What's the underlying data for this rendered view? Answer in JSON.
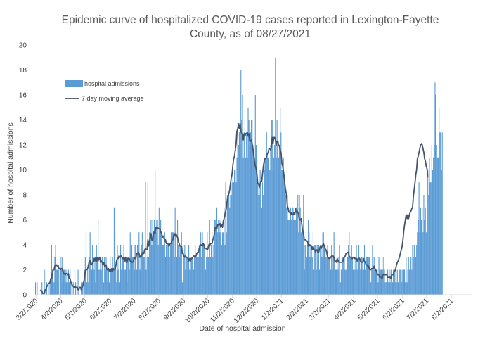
{
  "chart_data": {
    "type": "bar",
    "title_line1": "Epidemic curve of hospitalized COVID-19 cases reported in Lexington-Fayette",
    "title_line2": "County, as of 08/27/2021",
    "xlabel": "Date of hospital admission",
    "ylabel": "Number of hospital admissions",
    "ylim": [
      0,
      20
    ],
    "y_ticks": [
      "0",
      "2",
      "4",
      "6",
      "8",
      "10",
      "12",
      "14",
      "16",
      "18",
      "20"
    ],
    "x_ticks": [
      "3/2/2020",
      "4/2/2020",
      "5/2/2020",
      "6/2/2020",
      "7/2/2020",
      "8/2/2020",
      "9/2/2020",
      "10/2/2020",
      "11/2/2020",
      "12/2/2020",
      "1/2/2021",
      "2/2/2021",
      "3/2/2021",
      "4/2/2021",
      "5/2/2021",
      "6/2/2021",
      "7/2/2021",
      "8/2/2021"
    ],
    "x_start": "2020-03-01",
    "x_end": "2021-08-27",
    "legend_position": "top-left",
    "grid": false,
    "series": [
      {
        "name": "hospital admissions",
        "kind": "bar",
        "color": "#5b9bd5",
        "start_date": "2020-03-01",
        "values": [
          1,
          0,
          1,
          0,
          0,
          0,
          0,
          0,
          1,
          0,
          0,
          2,
          0,
          2,
          1,
          0,
          1,
          0,
          1,
          1,
          4,
          2,
          1,
          1,
          3,
          4,
          2,
          2,
          1,
          2,
          0,
          3,
          2,
          3,
          1,
          2,
          2,
          1,
          2,
          1,
          1,
          2,
          1,
          2,
          1,
          0,
          0,
          1,
          0,
          2,
          1,
          0,
          0,
          2,
          0,
          0,
          0,
          1,
          1,
          1,
          0,
          2,
          3,
          5,
          1,
          2,
          1,
          3,
          5,
          2,
          2,
          4,
          3,
          2,
          3,
          1,
          4,
          3,
          6,
          2,
          2,
          3,
          2,
          3,
          3,
          1,
          3,
          2,
          3,
          2,
          1,
          2,
          1,
          3,
          2,
          2,
          3,
          2,
          7,
          5,
          2,
          1,
          4,
          2,
          3,
          1,
          4,
          2,
          3,
          3,
          4,
          2,
          2,
          3,
          1,
          3,
          3,
          2,
          5,
          3,
          4,
          3,
          3,
          2,
          4,
          4,
          2,
          4,
          4,
          5,
          2,
          3,
          4,
          5,
          4,
          3,
          3,
          9,
          2,
          3,
          9,
          3,
          5,
          5,
          6,
          4,
          6,
          5,
          6,
          10,
          5,
          6,
          6,
          4,
          7,
          5,
          6,
          5,
          4,
          4,
          4,
          5,
          3,
          4,
          3,
          4,
          4,
          3,
          4,
          5,
          5,
          5,
          5,
          3,
          7,
          5,
          3,
          6,
          4,
          3,
          4,
          4,
          5,
          1,
          4,
          3,
          4,
          2,
          3,
          3,
          2,
          4,
          2,
          2,
          3,
          3,
          3,
          2,
          3,
          4,
          3,
          3,
          3,
          3,
          4,
          4,
          5,
          3,
          5,
          4,
          4,
          4,
          2,
          3,
          5,
          3,
          3,
          6,
          3,
          4,
          5,
          3,
          4,
          6,
          6,
          5,
          7,
          5,
          6,
          6,
          5,
          6,
          4,
          5,
          5,
          7,
          4,
          9,
          5,
          8,
          8,
          8,
          7,
          8,
          8,
          9,
          10,
          9,
          10,
          10,
          9,
          11,
          13,
          12,
          13,
          12,
          18,
          14,
          16,
          11,
          13,
          14,
          11,
          13,
          11,
          15,
          14,
          12,
          13,
          14,
          14,
          12,
          11,
          11,
          16,
          12,
          11,
          9,
          8,
          8,
          10,
          9,
          7,
          9,
          8,
          10,
          11,
          11,
          13,
          11,
          11,
          10,
          10,
          12,
          14,
          14,
          10,
          11,
          12,
          19,
          11,
          14,
          12,
          11,
          12,
          15,
          13,
          10,
          10,
          11,
          9,
          8,
          8,
          7,
          8,
          6,
          6,
          6,
          7,
          6,
          7,
          7,
          6,
          6,
          6,
          7,
          6,
          8,
          5,
          8,
          7,
          5,
          4,
          5,
          8,
          2,
          4,
          4,
          3,
          4,
          6,
          5,
          3,
          4,
          4,
          3,
          5,
          2,
          4,
          4,
          2,
          4,
          3,
          4,
          2,
          4,
          4,
          3,
          5,
          5,
          4,
          4,
          3,
          3,
          4,
          3,
          3,
          3,
          2,
          4,
          2,
          3,
          5,
          3,
          2,
          2,
          3,
          2,
          3,
          4,
          1,
          2,
          2,
          3,
          3,
          3,
          2,
          2,
          2,
          3,
          4,
          5,
          3,
          3,
          4,
          3,
          2,
          3,
          2,
          3,
          4,
          2,
          3,
          4,
          3,
          2,
          3,
          3,
          2,
          2,
          4,
          2,
          3,
          3,
          3,
          3,
          3,
          3,
          1,
          2,
          4,
          2,
          3,
          2,
          2,
          2,
          2,
          1,
          3,
          2,
          2,
          2,
          3,
          2,
          3,
          2,
          1,
          1,
          1,
          2,
          1,
          2,
          1,
          2,
          2,
          1,
          2,
          2,
          2,
          1,
          1,
          2,
          1,
          1,
          2,
          2,
          1,
          2,
          1,
          2,
          2,
          1,
          3,
          1,
          2,
          3,
          2,
          3,
          3,
          2,
          4,
          3,
          4,
          4,
          3,
          4,
          5,
          6,
          9,
          5,
          7,
          6,
          7,
          5,
          8,
          6,
          7,
          5,
          6,
          10,
          8,
          11,
          9,
          9,
          12,
          10,
          11,
          12,
          17,
          16,
          12,
          11,
          11,
          15,
          13,
          13,
          10,
          13
        ]
      },
      {
        "name": "7 day moving average",
        "kind": "line",
        "color": "#44546a",
        "start_date": "2020-03-07",
        "values": [
          0.4,
          0.3,
          0.3,
          0.1,
          0.1,
          0.1,
          0.4,
          0.4,
          0.7,
          0.7,
          0.9,
          0.9,
          1.0,
          1.3,
          1.3,
          1.7,
          2.0,
          2.0,
          2.3,
          2.4,
          2.4,
          2.3,
          2.4,
          2.1,
          2.1,
          2.0,
          2.1,
          2.1,
          1.9,
          1.7,
          1.7,
          1.6,
          1.7,
          1.7,
          1.6,
          1.7,
          1.3,
          1.3,
          1.0,
          0.9,
          0.7,
          0.7,
          0.6,
          0.7,
          0.6,
          0.6,
          0.6,
          0.4,
          0.4,
          0.6,
          0.6,
          0.4,
          0.6,
          0.7,
          1.0,
          1.3,
          1.9,
          2.0,
          2.0,
          2.1,
          2.4,
          2.7,
          2.7,
          2.4,
          2.4,
          2.6,
          2.6,
          2.9,
          2.7,
          3.0,
          2.7,
          3.0,
          2.7,
          2.9,
          3.0,
          2.6,
          2.7,
          2.6,
          2.4,
          2.6,
          2.3,
          2.3,
          2.4,
          2.0,
          2.0,
          2.1,
          1.9,
          2.0,
          1.9,
          2.1,
          1.9,
          2.1,
          2.0,
          2.0,
          2.3,
          2.7,
          2.9,
          2.9,
          3.1,
          3.0,
          3.1,
          3.1,
          2.9,
          2.9,
          3.0,
          2.7,
          3.0,
          2.6,
          2.6,
          2.9,
          2.9,
          2.9,
          2.7,
          2.7,
          2.6,
          2.6,
          2.7,
          3.0,
          2.9,
          2.9,
          3.3,
          3.3,
          3.4,
          3.3,
          3.0,
          3.1,
          3.1,
          3.3,
          3.4,
          3.3,
          3.6,
          3.7,
          3.6,
          3.6,
          4.4,
          3.9,
          4.3,
          4.6,
          4.9,
          4.4,
          4.3,
          4.9,
          5.1,
          4.9,
          5.4,
          5.3,
          5.4,
          5.3,
          5.3,
          5.3,
          5.0,
          5.0,
          4.6,
          4.7,
          4.6,
          4.3,
          4.4,
          4.1,
          4.1,
          4.1,
          3.9,
          4.0,
          4.1,
          4.1,
          4.4,
          4.4,
          4.7,
          4.9,
          4.7,
          4.9,
          4.7,
          4.6,
          4.3,
          4.1,
          3.9,
          3.9,
          3.9,
          3.3,
          3.3,
          3.1,
          3.0,
          3.1,
          3.0,
          3.0,
          2.9,
          2.7,
          2.9,
          2.7,
          2.9,
          2.9,
          3.0,
          3.1,
          3.1,
          3.0,
          3.1,
          3.3,
          3.4,
          3.4,
          3.7,
          3.9,
          4.0,
          4.0,
          3.9,
          4.1,
          4.0,
          3.7,
          3.7,
          3.7,
          3.6,
          3.7,
          4.0,
          3.9,
          4.1,
          4.1,
          4.1,
          4.4,
          4.6,
          4.9,
          5.4,
          5.4,
          5.3,
          5.6,
          5.6,
          5.6,
          5.7,
          5.4,
          5.6,
          5.4,
          5.9,
          6.1,
          6.4,
          6.7,
          7.0,
          7.6,
          7.9,
          8.1,
          8.4,
          8.9,
          9.4,
          9.7,
          10.4,
          10.9,
          11.1,
          11.6,
          12.1,
          13.1,
          13.3,
          13.7,
          13.3,
          13.7,
          13.1,
          12.9,
          12.9,
          12.4,
          12.9,
          12.7,
          12.9,
          12.9,
          13.0,
          12.7,
          12.9,
          12.3,
          12.3,
          12.4,
          12.1,
          11.7,
          11.1,
          10.7,
          10.3,
          10.1,
          9.6,
          8.9,
          8.9,
          8.6,
          8.9,
          9.1,
          9.1,
          9.7,
          10.3,
          10.7,
          10.9,
          10.9,
          11.0,
          11.3,
          11.4,
          11.7,
          11.7,
          11.6,
          11.9,
          12.6,
          12.1,
          12.6,
          12.6,
          12.4,
          12.0,
          12.3,
          12.3,
          12.0,
          11.9,
          11.6,
          11.4,
          10.6,
          10.3,
          9.9,
          9.4,
          8.7,
          8.3,
          7.9,
          7.1,
          6.9,
          6.6,
          6.6,
          6.4,
          6.6,
          6.4,
          6.4,
          6.6,
          6.4,
          6.9,
          6.6,
          6.7,
          6.6,
          6.4,
          6.0,
          6.0,
          6.1,
          5.6,
          5.1,
          4.9,
          4.4,
          4.4,
          4.4,
          4.3,
          4.3,
          3.9,
          3.9,
          4.0,
          3.9,
          3.9,
          3.6,
          3.9,
          3.6,
          3.6,
          3.4,
          3.6,
          3.6,
          3.4,
          3.4,
          3.7,
          3.9,
          3.7,
          3.9,
          4.0,
          4.1,
          3.9,
          3.7,
          3.6,
          3.4,
          3.0,
          3.0,
          2.9,
          2.9,
          3.0,
          3.1,
          3.1,
          3.1,
          3.0,
          2.7,
          2.7,
          2.6,
          2.9,
          2.7,
          2.7,
          2.6,
          2.6,
          2.6,
          2.6,
          2.7,
          2.9,
          3.0,
          3.1,
          3.3,
          3.3,
          3.4,
          3.4,
          3.1,
          3.0,
          3.0,
          2.9,
          2.9,
          3.0,
          3.0,
          2.9,
          2.9,
          2.9,
          2.7,
          2.9,
          2.9,
          2.9,
          2.7,
          2.6,
          2.6,
          2.6,
          2.9,
          2.7,
          2.6,
          2.4,
          2.4,
          2.3,
          2.3,
          2.1,
          2.0,
          2.0,
          2.1,
          2.1,
          2.1,
          2.3,
          2.1,
          2.0,
          1.9,
          1.6,
          1.6,
          1.6,
          1.4,
          1.4,
          1.4,
          1.3,
          1.6,
          1.6,
          1.6,
          1.6,
          1.6,
          1.6,
          1.4,
          1.4,
          1.4,
          1.4,
          1.3,
          1.6,
          1.6,
          1.6,
          1.9,
          1.9,
          2.1,
          2.4,
          2.6,
          2.7,
          2.9,
          3.1,
          3.4,
          3.6,
          3.9,
          4.4,
          5.1,
          5.6,
          6.0,
          6.4,
          6.1,
          6.4,
          6.1,
          6.4,
          6.6,
          6.7,
          6.9,
          7.0,
          7.9,
          8.4,
          9.0,
          9.6,
          10.0,
          10.9,
          11.1,
          11.4,
          11.7,
          12.0,
          12.1,
          12.0,
          11.7,
          11.4,
          10.9,
          10.7,
          10.3,
          10.1,
          9.4
        ]
      }
    ]
  }
}
